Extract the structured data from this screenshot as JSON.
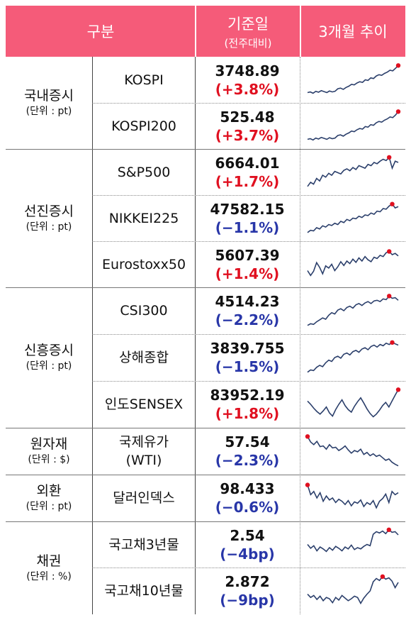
{
  "header": {
    "category": "구분",
    "base_date": "기준일",
    "base_date_sub": "(전주대비)",
    "trend": "3개월 추이"
  },
  "colors": {
    "header_bg": "#f55b79",
    "up": "#e01020",
    "down": "#2836a8",
    "trend_line": "#2b3f6b",
    "trend_marker": "#e01020"
  },
  "groups": [
    {
      "name": "국내증시",
      "unit": "(단위 : pt)",
      "rows": [
        {
          "label": "KOSPI",
          "value": "3748.89",
          "change": "(+3.8%)",
          "direction": "up"
        },
        {
          "label": "KOSPI200",
          "value": "525.48",
          "change": "(+3.7%)",
          "direction": "up"
        }
      ]
    },
    {
      "name": "선진증시",
      "unit": "(단위 : pt)",
      "rows": [
        {
          "label": "S&P500",
          "value": "6664.01",
          "change": "(+1.7%)",
          "direction": "up"
        },
        {
          "label": "NIKKEI225",
          "value": "47582.15",
          "change": "(−1.1%)",
          "direction": "down"
        },
        {
          "label": "Eurostoxx50",
          "value": "5607.39",
          "change": "(+1.4%)",
          "direction": "up"
        }
      ]
    },
    {
      "name": "신흥증시",
      "unit": "(단위 : pt)",
      "rows": [
        {
          "label": "CSI300",
          "value": "4514.23",
          "change": "(−2.2%)",
          "direction": "down"
        },
        {
          "label": "상해종합",
          "value": "3839.755",
          "change": "(−1.5%)",
          "direction": "down"
        },
        {
          "label": "인도SENSEX",
          "value": "83952.19",
          "change": "(+1.8%)",
          "direction": "up"
        }
      ]
    },
    {
      "name": "원자재",
      "unit": "(단위 : $)",
      "rows": [
        {
          "label": "국제유가",
          "label2": "(WTI)",
          "value": "57.54",
          "change": "(−2.3%)",
          "direction": "down"
        }
      ]
    },
    {
      "name": "외환",
      "unit": "(단위 : pt)",
      "rows": [
        {
          "label": "달러인덱스",
          "value": "98.433",
          "change": "(−0.6%)",
          "direction": "down"
        }
      ]
    },
    {
      "name": "채권",
      "unit": "(단위 : %)",
      "rows": [
        {
          "label": "국고채3년물",
          "value": "2.54",
          "change": "(−4bp)",
          "direction": "down"
        },
        {
          "label": "국고채10년물",
          "value": "2.872",
          "change": "(−9bp)",
          "direction": "down"
        }
      ]
    }
  ],
  "sparklines": [
    [
      0.1,
      0.12,
      0.08,
      0.14,
      0.11,
      0.16,
      0.13,
      0.1,
      0.15,
      0.12,
      0.14,
      0.22,
      0.24,
      0.2,
      0.26,
      0.3,
      0.36,
      0.34,
      0.4,
      0.44,
      0.42,
      0.5,
      0.48,
      0.56,
      0.54,
      0.62,
      0.66,
      0.64,
      0.7,
      0.74,
      0.8,
      0.78,
      0.86,
      0.95
    ],
    [
      0.08,
      0.1,
      0.06,
      0.12,
      0.09,
      0.14,
      0.11,
      0.08,
      0.13,
      0.1,
      0.12,
      0.2,
      0.22,
      0.18,
      0.24,
      0.28,
      0.34,
      0.32,
      0.38,
      0.42,
      0.4,
      0.48,
      0.46,
      0.54,
      0.52,
      0.6,
      0.64,
      0.62,
      0.68,
      0.72,
      0.78,
      0.76,
      0.84,
      0.95
    ],
    [
      0.05,
      0.18,
      0.12,
      0.3,
      0.22,
      0.4,
      0.34,
      0.46,
      0.4,
      0.52,
      0.48,
      0.44,
      0.55,
      0.6,
      0.54,
      0.64,
      0.58,
      0.7,
      0.66,
      0.62,
      0.74,
      0.7,
      0.8,
      0.76,
      0.84,
      0.9,
      0.86,
      0.96,
      0.62,
      0.84,
      0.8
    ],
    [
      0.05,
      0.12,
      0.1,
      0.2,
      0.16,
      0.26,
      0.22,
      0.3,
      0.27,
      0.34,
      0.3,
      0.4,
      0.36,
      0.46,
      0.42,
      0.5,
      0.48,
      0.56,
      0.52,
      0.6,
      0.58,
      0.66,
      0.62,
      0.72,
      0.7,
      0.8,
      0.78,
      0.88,
      0.94,
      0.82,
      0.86
    ],
    [
      0.3,
      0.15,
      0.28,
      0.55,
      0.4,
      0.2,
      0.45,
      0.38,
      0.5,
      0.3,
      0.42,
      0.58,
      0.46,
      0.6,
      0.52,
      0.66,
      0.56,
      0.7,
      0.6,
      0.74,
      0.64,
      0.58,
      0.72,
      0.68,
      0.78,
      0.74,
      0.86,
      0.9,
      0.8,
      0.84,
      0.76
    ],
    [
      0.05,
      0.1,
      0.08,
      0.16,
      0.22,
      0.28,
      0.24,
      0.36,
      0.44,
      0.4,
      0.52,
      0.56,
      0.5,
      0.6,
      0.64,
      0.58,
      0.68,
      0.72,
      0.66,
      0.74,
      0.78,
      0.72,
      0.8,
      0.82,
      0.78,
      0.86,
      0.84,
      0.95,
      0.88,
      0.9,
      0.82
    ],
    [
      0.05,
      0.12,
      0.1,
      0.2,
      0.26,
      0.22,
      0.34,
      0.42,
      0.38,
      0.5,
      0.54,
      0.48,
      0.6,
      0.64,
      0.58,
      0.68,
      0.72,
      0.66,
      0.76,
      0.8,
      0.74,
      0.84,
      0.88,
      0.82,
      0.9,
      0.86,
      0.94,
      0.9,
      0.96,
      0.92,
      0.88
    ],
    [
      0.6,
      0.5,
      0.38,
      0.28,
      0.2,
      0.3,
      0.42,
      0.24,
      0.14,
      0.34,
      0.5,
      0.64,
      0.46,
      0.34,
      0.26,
      0.44,
      0.58,
      0.7,
      0.54,
      0.36,
      0.22,
      0.12,
      0.2,
      0.32,
      0.46,
      0.56,
      0.42,
      0.6,
      0.78,
      0.95
    ],
    [
      0.95,
      0.78,
      0.7,
      0.8,
      0.64,
      0.66,
      0.56,
      0.7,
      0.6,
      0.62,
      0.52,
      0.58,
      0.66,
      0.54,
      0.44,
      0.52,
      0.48,
      0.56,
      0.4,
      0.46,
      0.36,
      0.42,
      0.34,
      0.38,
      0.3,
      0.22,
      0.26,
      0.16,
      0.1,
      0.05
    ],
    [
      0.9,
      0.6,
      0.7,
      0.5,
      0.66,
      0.4,
      0.56,
      0.44,
      0.5,
      0.36,
      0.46,
      0.4,
      0.3,
      0.42,
      0.26,
      0.38,
      0.34,
      0.44,
      0.24,
      0.36,
      0.3,
      0.42,
      0.2,
      0.4,
      0.48,
      0.62,
      0.36,
      0.7,
      0.6,
      0.66
    ],
    [
      0.5,
      0.38,
      0.46,
      0.3,
      0.42,
      0.36,
      0.28,
      0.4,
      0.32,
      0.44,
      0.38,
      0.3,
      0.42,
      0.36,
      0.48,
      0.34,
      0.4,
      0.36,
      0.44,
      0.5,
      0.46,
      0.82,
      0.9,
      0.86,
      0.92,
      0.84,
      0.96,
      0.88,
      0.9,
      0.8
    ],
    [
      0.4,
      0.3,
      0.36,
      0.24,
      0.34,
      0.2,
      0.3,
      0.26,
      0.14,
      0.3,
      0.22,
      0.36,
      0.28,
      0.2,
      0.26,
      0.34,
      0.3,
      0.12,
      0.28,
      0.4,
      0.5,
      0.78,
      0.88,
      0.82,
      0.94,
      0.86,
      0.9,
      0.8,
      0.6,
      0.76
    ]
  ]
}
